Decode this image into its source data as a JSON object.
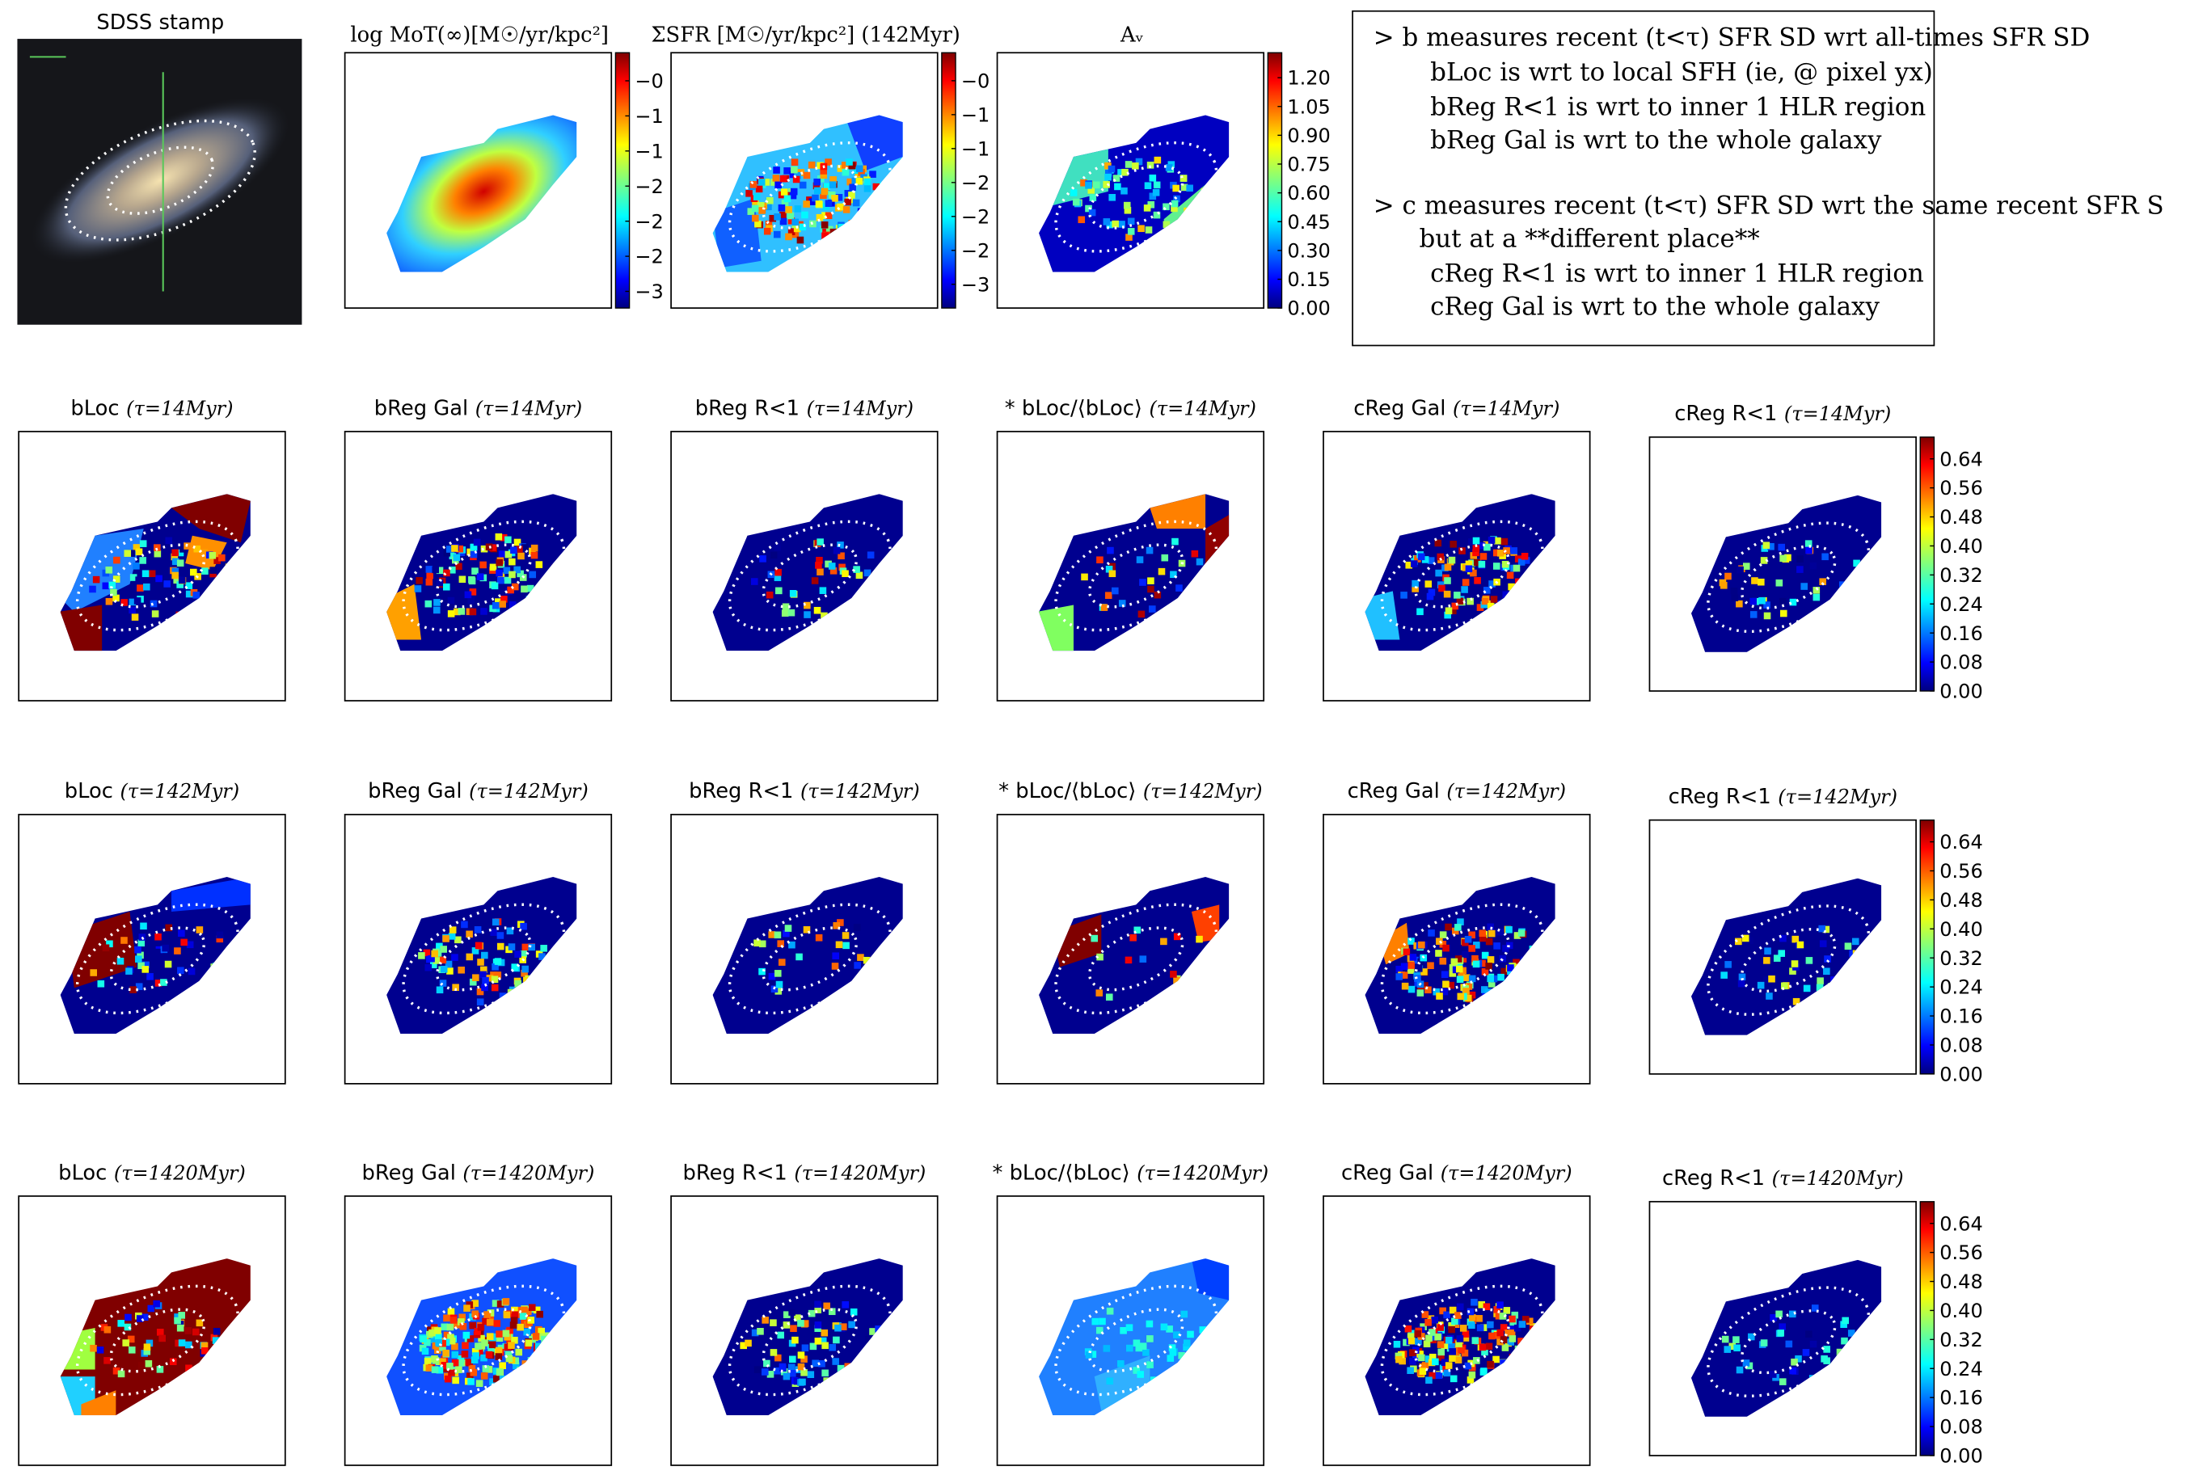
{
  "stamp": {
    "title": "SDSS stamp"
  },
  "top_panels": [
    {
      "title": "log MoT(∞)[M☉/yr/kpc²]",
      "colorbar": {
        "lim": [
          -2.99,
          -0.08
        ],
        "ticks": [
          {
            "value": -0.4,
            "label": "−0"
          },
          {
            "value": -0.8,
            "label": "−1"
          },
          {
            "value": -1.2,
            "label": "−1"
          },
          {
            "value": -1.6,
            "label": "−2"
          },
          {
            "value": -2.0,
            "label": "−2"
          },
          {
            "value": -2.4,
            "label": "−2"
          },
          {
            "value": -2.8,
            "label": "−3"
          }
        ]
      }
    },
    {
      "title": "ΣSFR [M☉/yr/kpc²] (142Myr)",
      "colorbar": {
        "lim": [
          -3.08,
          -0.07
        ],
        "ticks": [
          {
            "value": -0.4,
            "label": "−0"
          },
          {
            "value": -0.8,
            "label": "−1"
          },
          {
            "value": -1.2,
            "label": "−1"
          },
          {
            "value": -1.6,
            "label": "−2"
          },
          {
            "value": -2.0,
            "label": "−2"
          },
          {
            "value": -2.4,
            "label": "−2"
          },
          {
            "value": -2.8,
            "label": "−3"
          }
        ]
      }
    },
    {
      "title": "Aᵥ",
      "colorbar": {
        "lim": [
          0,
          1.33
        ],
        "ticks": [
          {
            "value": 1.2,
            "label": "1.20"
          },
          1.05,
          {
            "value": 0.9,
            "label": "0.90"
          },
          0.75,
          {
            "value": 0.6,
            "label": "0.60"
          },
          0.45,
          {
            "value": 0.3,
            "label": "0.30"
          },
          0.15,
          {
            "value": 0,
            "label": "0.00"
          }
        ]
      }
    }
  ],
  "textbox": {
    "lines": [
      "> b measures recent (t<τ) SFR SD wrt all-times SFR SD",
      "bLoc is wrt to local SFH (ie, @ pixel yx)",
      "bReg R<1 is wrt to inner 1 HLR region",
      "bReg Gal is wrt to the whole galaxy",
      "> c measures recent (t<τ) SFR SD wrt the same recent SFR S",
      "but at a **different place**",
      "cReg R<1 is wrt to inner 1 HLR region",
      "cReg Gal is wrt to the whole galaxy"
    ]
  },
  "rows": [
    {
      "tau": "(τ=14Myr)",
      "panels": [
        "bLoc",
        "bReg Gal",
        "bReg R<1",
        "* bLoc/⟨bLoc⟩",
        "cReg Gal",
        "cReg R<1"
      ]
    },
    {
      "tau": "(τ=142Myr)",
      "panels": [
        "bLoc",
        "bReg Gal",
        "bReg R<1",
        "* bLoc/⟨bLoc⟩",
        "cReg Gal",
        "cReg R<1"
      ]
    },
    {
      "tau": "(τ=1420Myr)",
      "panels": [
        "bLoc",
        "bReg Gal",
        "bReg R<1",
        "* bLoc/⟨bLoc⟩",
        "cReg Gal",
        "cReg R<1"
      ]
    }
  ],
  "ratio_colorbar": {
    "lim": [
      0,
      0.7
    ],
    "ticks": [
      0.64,
      0.56,
      0.48,
      {
        "value": 0.4,
        "label": "0.40"
      },
      0.32,
      0.24,
      0.16,
      0.08,
      {
        "value": 0,
        "label": "0.00"
      }
    ]
  }
}
